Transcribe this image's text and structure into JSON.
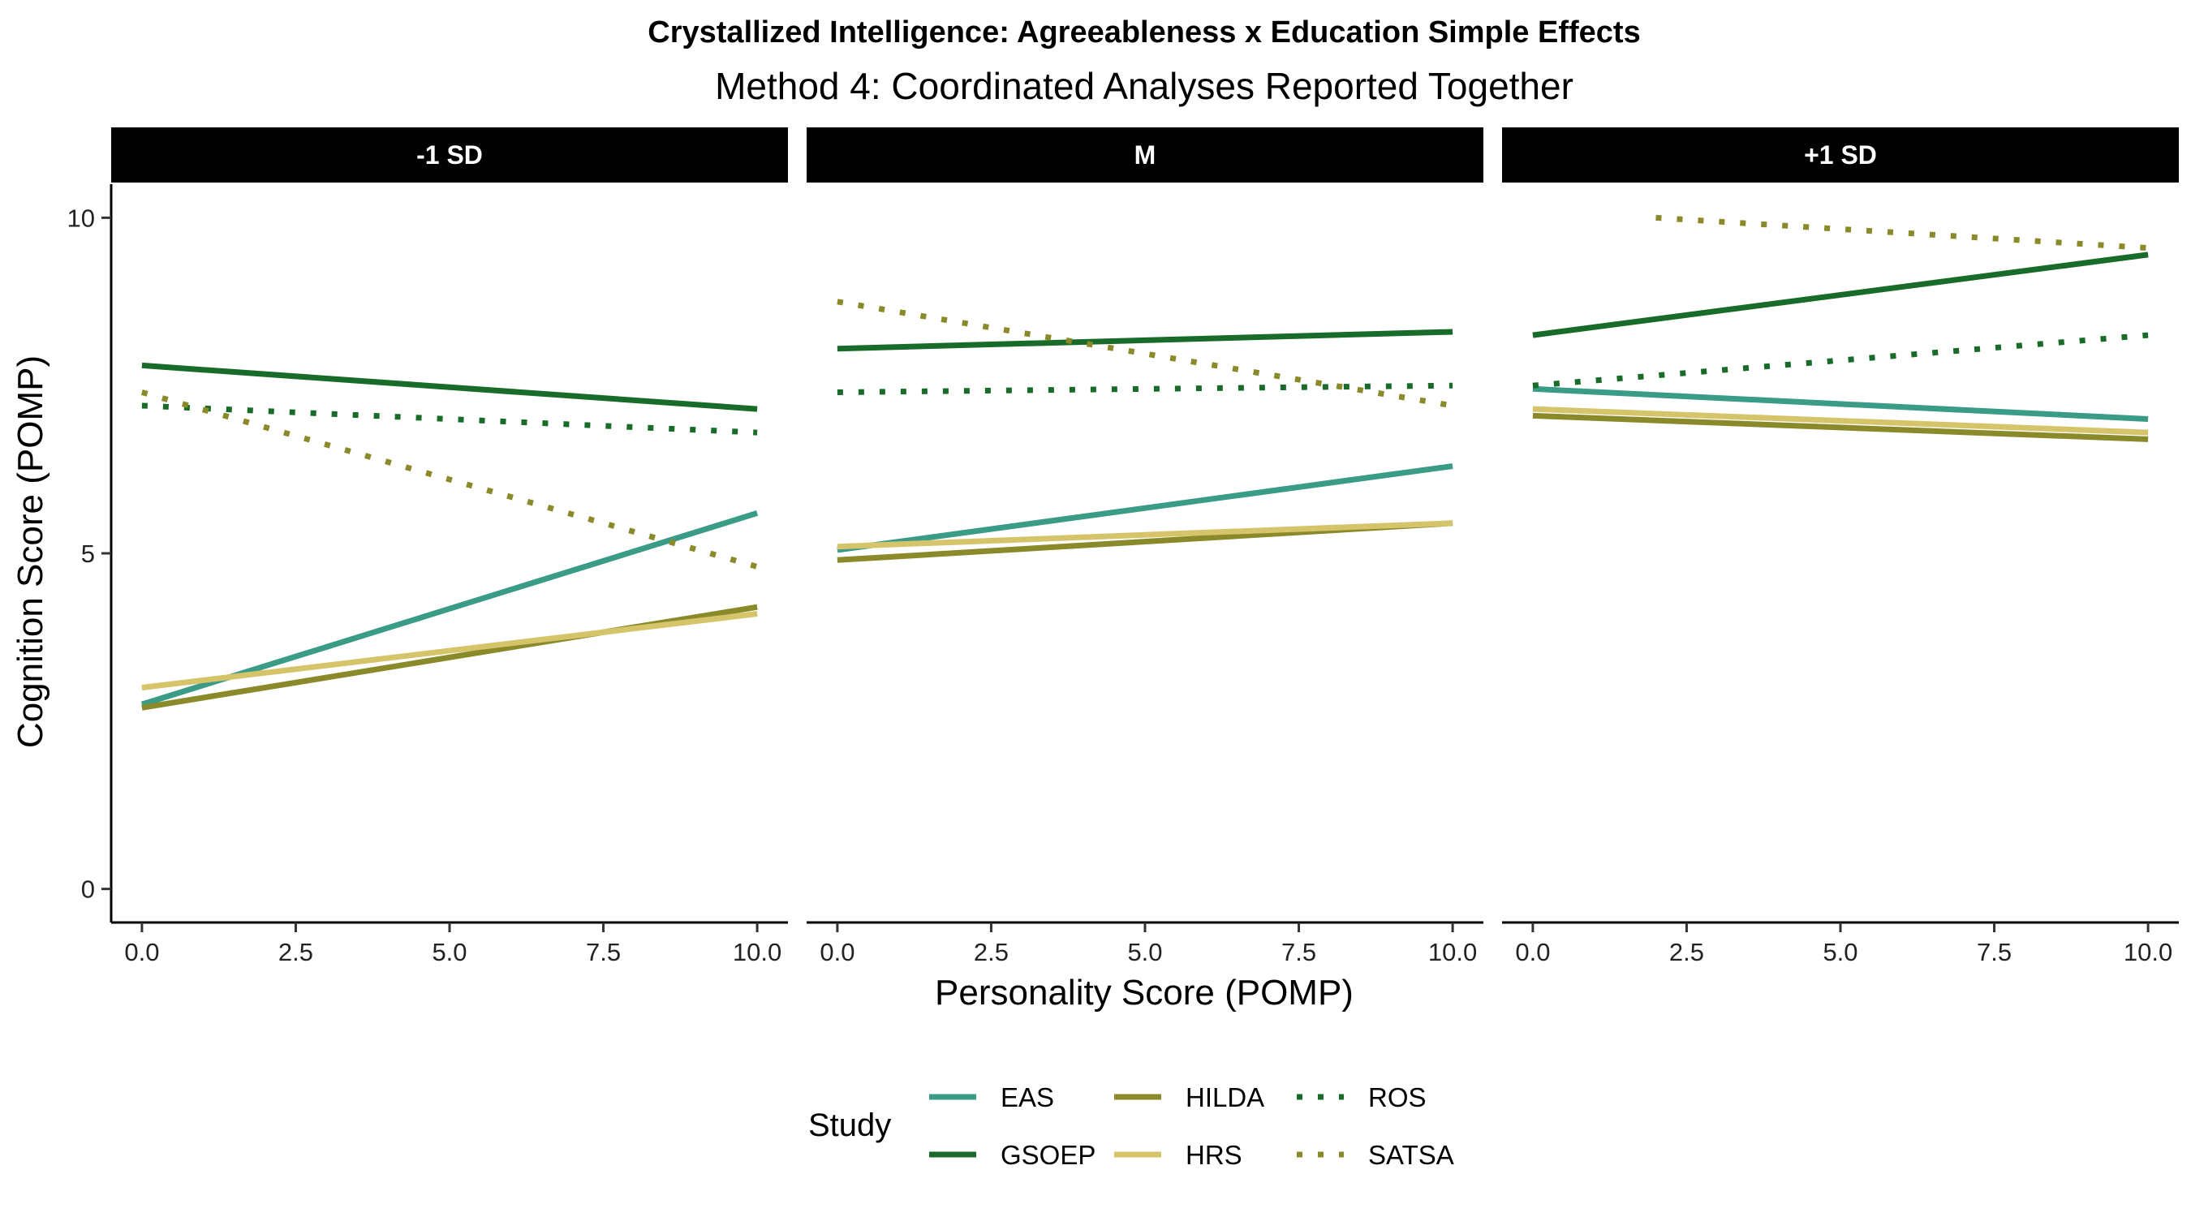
{
  "chart_data": {
    "type": "line",
    "title": "Crystallized Intelligence: Agreeableness x Education Simple Effects",
    "subtitle": "Method 4: Coordinated Analyses Reported Together",
    "xlabel": "Personality Score (POMP)",
    "ylabel": "Cognition Score (POMP)",
    "xlim": [
      -0.5,
      10.5
    ],
    "ylim": [
      -0.5,
      10.5
    ],
    "x_ticks": [
      0,
      2.5,
      5,
      7.5,
      10
    ],
    "x_tick_labels": [
      "0.0",
      "2.5",
      "5.0",
      "7.5",
      "10.0"
    ],
    "y_ticks": [
      0,
      5,
      10
    ],
    "y_tick_labels": [
      "0",
      "5",
      "10"
    ],
    "grid": false,
    "legend": {
      "title": "Study",
      "position": "bottom",
      "entries": [
        {
          "name": "EAS",
          "color": "#3a9b86",
          "style": "solid"
        },
        {
          "name": "GSOEP",
          "color": "#196b2a",
          "style": "solid"
        },
        {
          "name": "HILDA",
          "color": "#8a8a2a",
          "style": "solid"
        },
        {
          "name": "HRS",
          "color": "#d6c46a",
          "style": "solid"
        },
        {
          "name": "ROS",
          "color": "#196b2a",
          "style": "dotted"
        },
        {
          "name": "SATSA",
          "color": "#8a8a2a",
          "style": "dotted"
        }
      ]
    },
    "panels": [
      {
        "label": "-1 SD",
        "series": [
          {
            "name": "EAS",
            "x": [
              0,
              10
            ],
            "y": [
              2.75,
              5.6
            ]
          },
          {
            "name": "GSOEP",
            "x": [
              0,
              10
            ],
            "y": [
              7.8,
              7.15
            ]
          },
          {
            "name": "HILDA",
            "x": [
              0,
              10
            ],
            "y": [
              2.7,
              4.2
            ]
          },
          {
            "name": "HRS",
            "x": [
              0,
              10
            ],
            "y": [
              3.0,
              4.1
            ]
          },
          {
            "name": "ROS",
            "x": [
              0,
              10
            ],
            "y": [
              7.2,
              6.8
            ]
          },
          {
            "name": "SATSA",
            "x": [
              0,
              10
            ],
            "y": [
              7.4,
              4.8
            ]
          }
        ]
      },
      {
        "label": "M",
        "series": [
          {
            "name": "EAS",
            "x": [
              0,
              10
            ],
            "y": [
              5.05,
              6.3
            ]
          },
          {
            "name": "GSOEP",
            "x": [
              0,
              10
            ],
            "y": [
              8.05,
              8.3
            ]
          },
          {
            "name": "HILDA",
            "x": [
              0,
              10
            ],
            "y": [
              4.9,
              5.45
            ]
          },
          {
            "name": "HRS",
            "x": [
              0,
              10
            ],
            "y": [
              5.1,
              5.45
            ]
          },
          {
            "name": "ROS",
            "x": [
              0,
              10
            ],
            "y": [
              7.4,
              7.5
            ]
          },
          {
            "name": "SATSA",
            "x": [
              0,
              10
            ],
            "y": [
              8.75,
              7.2
            ]
          }
        ]
      },
      {
        "label": "+1 SD",
        "series": [
          {
            "name": "EAS",
            "x": [
              0,
              10
            ],
            "y": [
              7.45,
              7.0
            ]
          },
          {
            "name": "GSOEP",
            "x": [
              0,
              10
            ],
            "y": [
              8.25,
              9.45
            ]
          },
          {
            "name": "HILDA",
            "x": [
              0,
              10
            ],
            "y": [
              7.05,
              6.7
            ]
          },
          {
            "name": "HRS",
            "x": [
              0,
              10
            ],
            "y": [
              7.15,
              6.8
            ]
          },
          {
            "name": "ROS",
            "x": [
              0,
              10
            ],
            "y": [
              7.5,
              8.25
            ]
          },
          {
            "name": "SATSA",
            "x": [
              2,
              10
            ],
            "y": [
              10.0,
              9.55
            ]
          }
        ]
      }
    ]
  }
}
